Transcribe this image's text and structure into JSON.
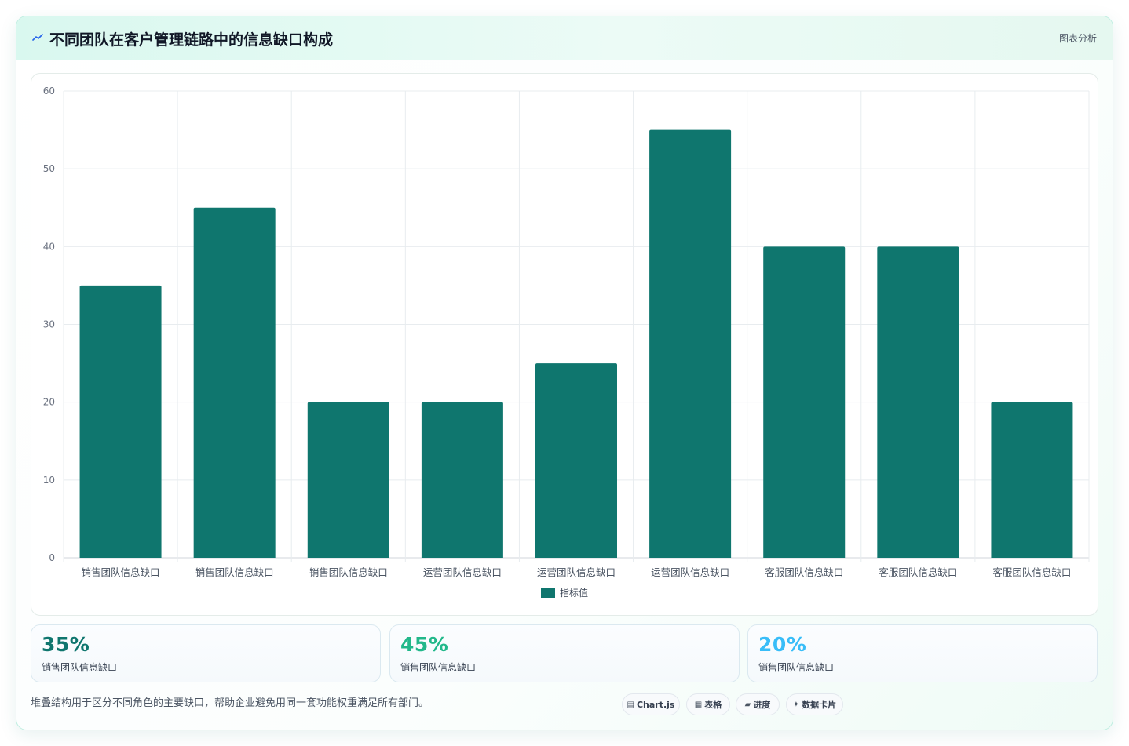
{
  "header": {
    "title": "不同团队在客户管理链路中的信息缺口构成",
    "tag": "图表分析",
    "icon": "chart-spark-icon"
  },
  "chart_data": {
    "type": "bar",
    "title": "",
    "xlabel": "",
    "ylabel": "",
    "categories": [
      "销售团队信息缺口",
      "销售团队信息缺口",
      "销售团队信息缺口",
      "运营团队信息缺口",
      "运营团队信息缺口",
      "运营团队信息缺口",
      "客服团队信息缺口",
      "客服团队信息缺口",
      "客服团队信息缺口"
    ],
    "series": [
      {
        "name": "指标值",
        "values": [
          35,
          45,
          20,
          20,
          25,
          55,
          40,
          40,
          20
        ],
        "color": "#0f766e"
      }
    ],
    "ylim": [
      0,
      60
    ],
    "yticks": [
      0,
      10,
      20,
      30,
      40,
      50,
      60
    ],
    "grid": true,
    "legend_position": "bottom"
  },
  "stats": [
    {
      "value": "35%",
      "label": "销售团队信息缺口",
      "color": "#0f766e"
    },
    {
      "value": "45%",
      "label": "销售团队信息缺口",
      "color": "#22b88a"
    },
    {
      "value": "20%",
      "label": "销售团队信息缺口",
      "color": "#38bdf8"
    }
  ],
  "footnote": "堆叠结构用于区分不同角色的主要缺口，帮助企业避免用同一套功能权重满足所有部门。",
  "chips": [
    {
      "label": "Chart.js",
      "icon": "chart-icon",
      "glyph": "▤"
    },
    {
      "label": "表格",
      "icon": "table-icon",
      "glyph": "▦"
    },
    {
      "label": "进度",
      "icon": "progress-icon",
      "glyph": "▰"
    },
    {
      "label": "数据卡片",
      "icon": "card-icon",
      "glyph": "✦"
    }
  ]
}
